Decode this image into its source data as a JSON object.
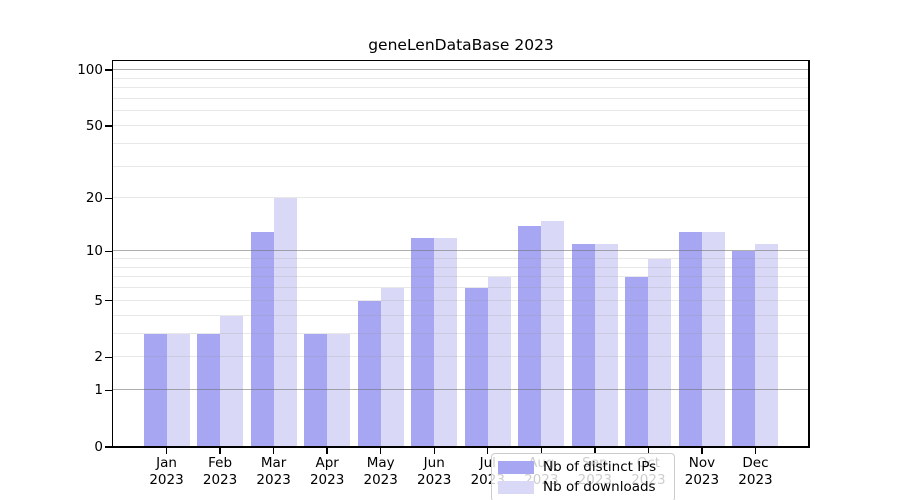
{
  "chart_data": {
    "type": "bar",
    "title": "geneLenDataBase 2023",
    "categories": [
      "Jan 2023",
      "Feb 2023",
      "Mar 2023",
      "Apr 2023",
      "May 2023",
      "Jun 2023",
      "Jul 2023",
      "Aug 2023",
      "Sep 2023",
      "Oct 2023",
      "Nov 2023",
      "Dec 2023"
    ],
    "series": [
      {
        "name": "Nb of distinct IPs",
        "color": "#a6a6f2",
        "values": [
          3,
          3,
          13,
          3,
          5,
          12,
          6,
          14,
          11,
          7,
          13,
          10
        ]
      },
      {
        "name": "Nb of downloads",
        "color": "#d9d9f7",
        "values": [
          3,
          4,
          20,
          3,
          6,
          12,
          7,
          15,
          11,
          9,
          13,
          11
        ]
      }
    ],
    "xlabel": "",
    "ylabel": "",
    "yscale": "log1p",
    "ylim": [
      0,
      112
    ],
    "yticks": [
      0,
      1,
      2,
      5,
      10,
      20,
      50,
      100
    ],
    "gridlines": {
      "major": [
        1,
        10,
        100
      ],
      "minor": [
        2,
        3,
        4,
        5,
        6,
        7,
        8,
        9,
        20,
        30,
        40,
        50,
        60,
        70,
        80,
        90
      ]
    },
    "grid": true,
    "legend_position": "lower center"
  }
}
